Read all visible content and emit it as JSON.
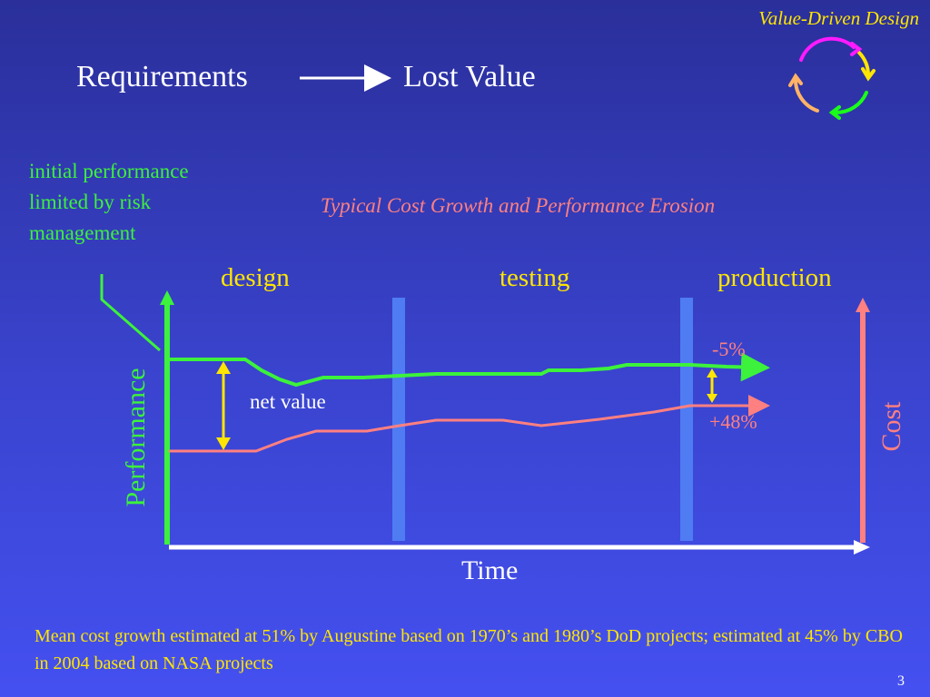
{
  "header": {
    "brand": "Value-Driven Design",
    "left_label": "Requirements",
    "right_label": "Lost Value"
  },
  "diagram": {
    "subtitle": "Typical Cost Growth and Performance Erosion",
    "callout": "initial performance limited by risk management",
    "phases": [
      "design",
      "testing",
      "production"
    ],
    "perf_change": "-5%",
    "cost_change": "+48%",
    "net_value_label": "net value",
    "x_axis_label": "Time",
    "y_axis_left_label": "Performance",
    "y_axis_right_label": "Cost",
    "colors": {
      "performance": "#3cf23c",
      "cost": "#ff8080",
      "highlight": "#ffe600",
      "milestone": "#4f7cf2",
      "axis_time": "#ffffff"
    }
  },
  "footer": {
    "note": "Mean cost growth estimated at 51% by Augustine based on 1970’s and 1980’s DoD projects; estimated at 45% by CBO in 2004 based on NASA projects",
    "page_number": "3"
  }
}
